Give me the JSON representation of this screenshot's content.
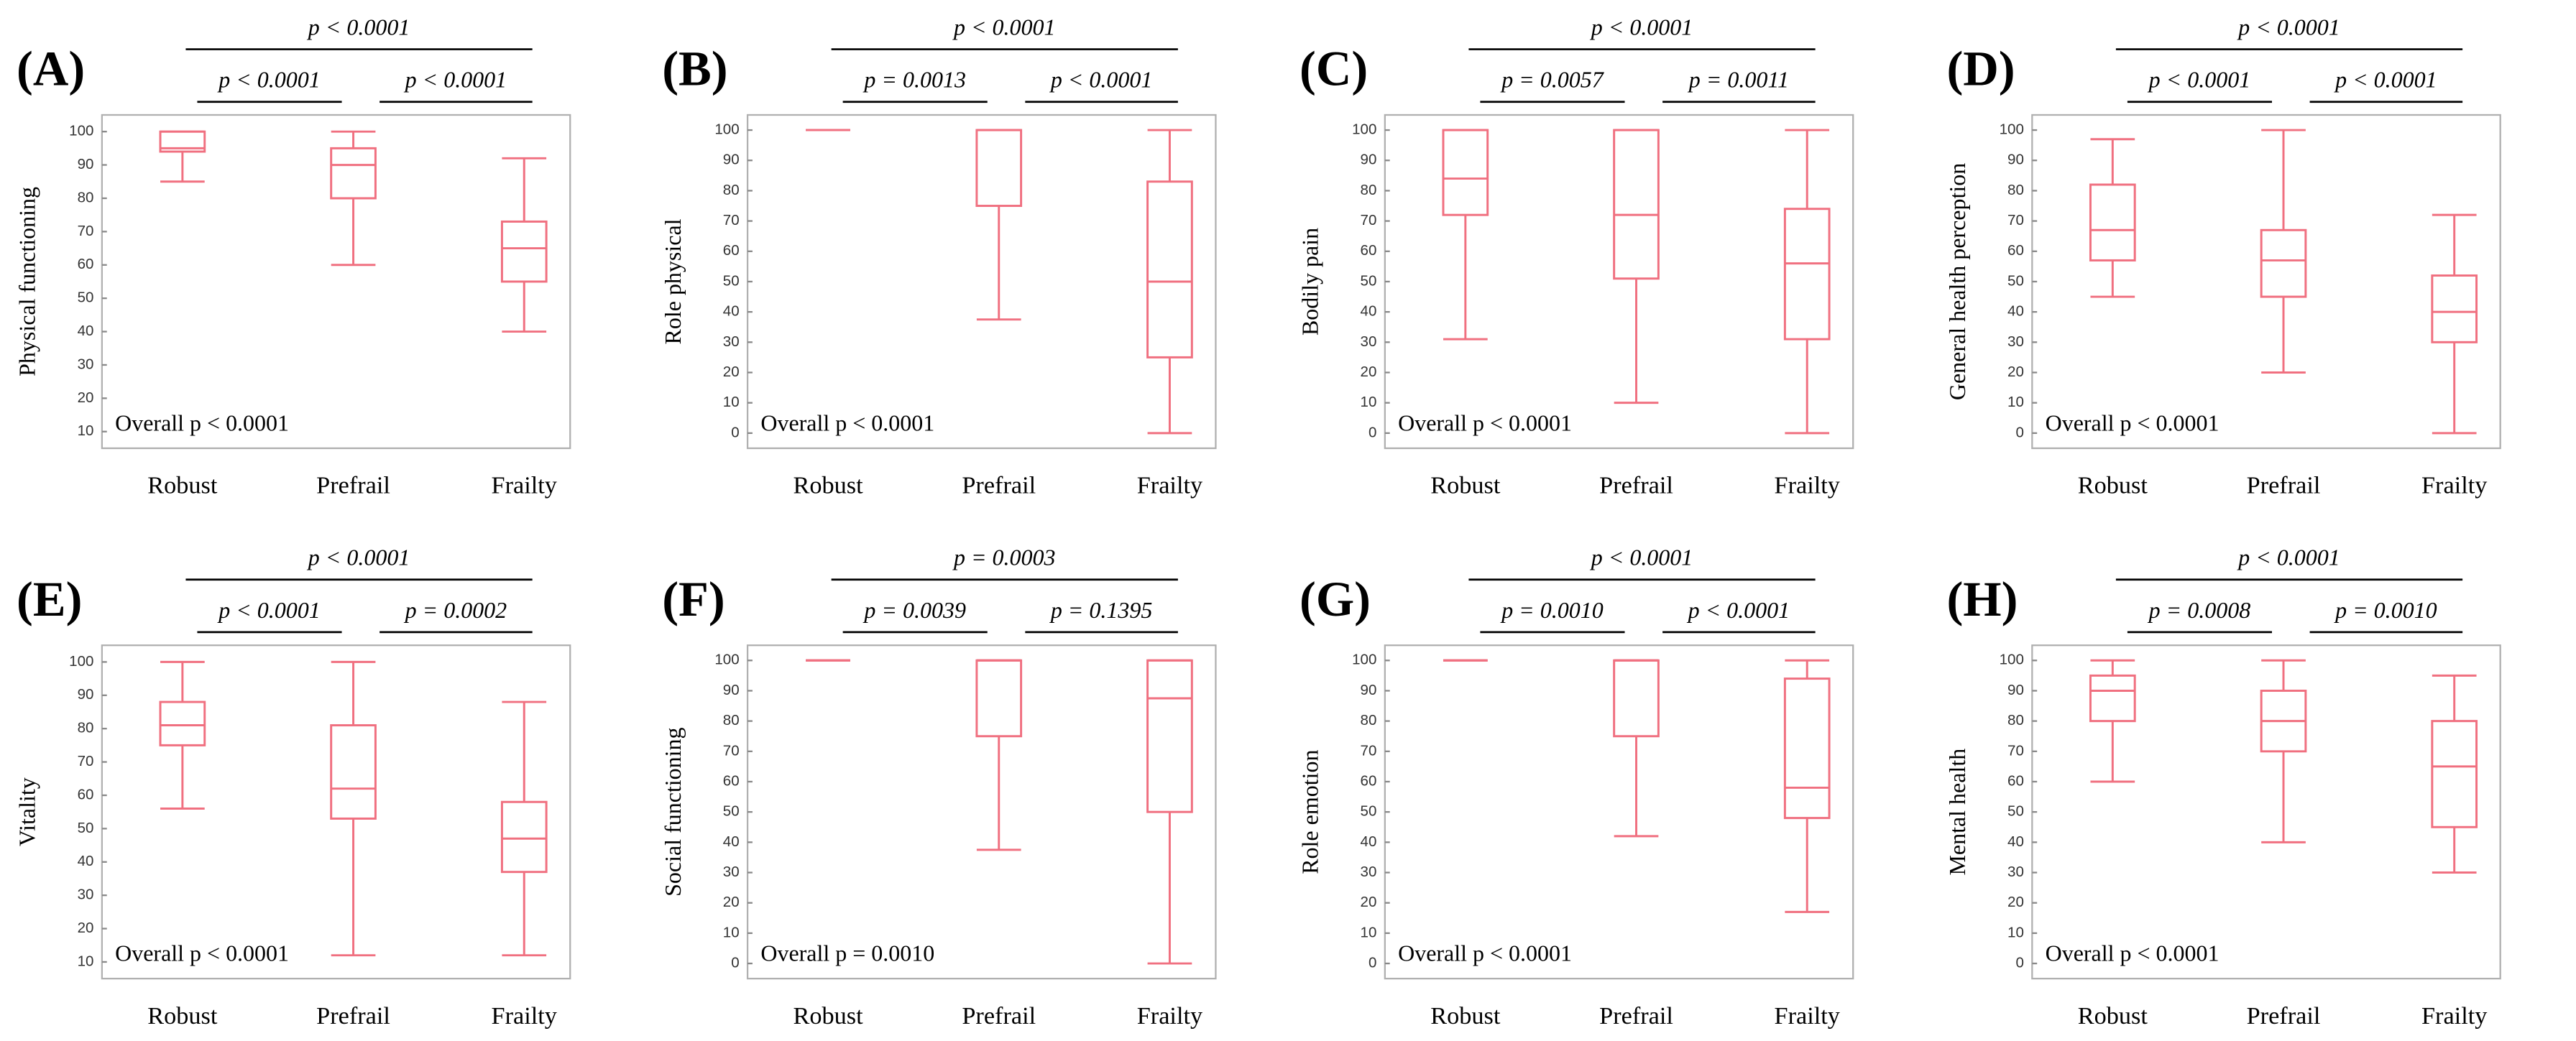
{
  "chart_data": [
    {
      "type": "box",
      "label": "(A)",
      "ylabel": "Physical functioning",
      "categories": [
        "Robust",
        "Prefrail",
        "Frailty"
      ],
      "color": "#f07080",
      "boxes": [
        {
          "min": 85,
          "q1": 94,
          "median": 95,
          "q3": 100,
          "max": 100
        },
        {
          "min": 60,
          "q1": 80,
          "median": 90,
          "q3": 95,
          "max": 100
        },
        {
          "min": 40,
          "q1": 55,
          "median": 65,
          "q3": 73,
          "max": 92
        }
      ],
      "ylim": [
        5,
        105
      ],
      "yticks": [
        10,
        20,
        30,
        40,
        50,
        60,
        70,
        80,
        90,
        100
      ],
      "annotations": {
        "robust_vs_frailty": "p < 0.0001",
        "robust_vs_prefrail": "p < 0.0001",
        "prefrail_vs_frailty": "p < 0.0001",
        "overall": "Overall p < 0.0001"
      }
    },
    {
      "type": "box",
      "label": "(B)",
      "ylabel": "Role physical",
      "categories": [
        "Robust",
        "Prefrail",
        "Frailty"
      ],
      "color": "#f07080",
      "boxes": [
        {
          "min": 100,
          "q1": 100,
          "median": 100,
          "q3": 100,
          "max": 100
        },
        {
          "min": 37.5,
          "q1": 75,
          "median": 100,
          "q3": 100,
          "max": 100
        },
        {
          "min": 0,
          "q1": 25,
          "median": 50,
          "q3": 83,
          "max": 100
        }
      ],
      "ylim": [
        -5,
        105
      ],
      "yticks": [
        0,
        10,
        20,
        30,
        40,
        50,
        60,
        70,
        80,
        90,
        100
      ],
      "annotations": {
        "robust_vs_frailty": "p < 0.0001",
        "robust_vs_prefrail": "p = 0.0013",
        "prefrail_vs_frailty": "p < 0.0001",
        "overall": "Overall p < 0.0001"
      }
    },
    {
      "type": "box",
      "label": "(C)",
      "ylabel": "Bodily pain",
      "categories": [
        "Robust",
        "Prefrail",
        "Frailty"
      ],
      "color": "#f07080",
      "boxes": [
        {
          "min": 31,
          "q1": 72,
          "median": 84,
          "q3": 100,
          "max": 100
        },
        {
          "min": 10,
          "q1": 51,
          "median": 72,
          "q3": 100,
          "max": 100
        },
        {
          "min": 0,
          "q1": 31,
          "median": 56,
          "q3": 74,
          "max": 100
        }
      ],
      "ylim": [
        -5,
        105
      ],
      "yticks": [
        0,
        10,
        20,
        30,
        40,
        50,
        60,
        70,
        80,
        90,
        100
      ],
      "annotations": {
        "robust_vs_frailty": "p < 0.0001",
        "robust_vs_prefrail": "p = 0.0057",
        "prefrail_vs_frailty": "p = 0.0011",
        "overall": "Overall p < 0.0001"
      }
    },
    {
      "type": "box",
      "label": "(D)",
      "ylabel": "General health perception",
      "categories": [
        "Robust",
        "Prefrail",
        "Frailty"
      ],
      "color": "#f07080",
      "boxes": [
        {
          "min": 45,
          "q1": 57,
          "median": 67,
          "q3": 82,
          "max": 97
        },
        {
          "min": 20,
          "q1": 45,
          "median": 57,
          "q3": 67,
          "max": 100
        },
        {
          "min": 0,
          "q1": 30,
          "median": 40,
          "q3": 52,
          "max": 72
        }
      ],
      "ylim": [
        -5,
        105
      ],
      "yticks": [
        0,
        10,
        20,
        30,
        40,
        50,
        60,
        70,
        80,
        90,
        100
      ],
      "annotations": {
        "robust_vs_frailty": "p < 0.0001",
        "robust_vs_prefrail": "p < 0.0001",
        "prefrail_vs_frailty": "p < 0.0001",
        "overall": "Overall p < 0.0001"
      }
    },
    {
      "type": "box",
      "label": "(E)",
      "ylabel": "Vitality",
      "categories": [
        "Robust",
        "Prefrail",
        "Frailty"
      ],
      "color": "#f07080",
      "boxes": [
        {
          "min": 56,
          "q1": 75,
          "median": 81,
          "q3": 88,
          "max": 100
        },
        {
          "min": 12,
          "q1": 53,
          "median": 62,
          "q3": 81,
          "max": 100
        },
        {
          "min": 12,
          "q1": 37,
          "median": 47,
          "q3": 58,
          "max": 88
        }
      ],
      "ylim": [
        5,
        105
      ],
      "yticks": [
        10,
        20,
        30,
        40,
        50,
        60,
        70,
        80,
        90,
        100
      ],
      "annotations": {
        "robust_vs_frailty": "p < 0.0001",
        "robust_vs_prefrail": "p < 0.0001",
        "prefrail_vs_frailty": "p = 0.0002",
        "overall": "Overall p < 0.0001"
      }
    },
    {
      "type": "box",
      "label": "(F)",
      "ylabel": "Social functioning",
      "categories": [
        "Robust",
        "Prefrail",
        "Frailty"
      ],
      "color": "#f07080",
      "boxes": [
        {
          "min": 100,
          "q1": 100,
          "median": 100,
          "q3": 100,
          "max": 100
        },
        {
          "min": 37.5,
          "q1": 75,
          "median": 100,
          "q3": 100,
          "max": 100
        },
        {
          "min": 0,
          "q1": 50,
          "median": 87.5,
          "q3": 100,
          "max": 100
        }
      ],
      "ylim": [
        -5,
        105
      ],
      "yticks": [
        0,
        10,
        20,
        30,
        40,
        50,
        60,
        70,
        80,
        90,
        100
      ],
      "annotations": {
        "robust_vs_frailty": "p = 0.0003",
        "robust_vs_prefrail": "p = 0.0039",
        "prefrail_vs_frailty": "p = 0.1395",
        "overall": "Overall p = 0.0010"
      }
    },
    {
      "type": "box",
      "label": "(G)",
      "ylabel": "Role emotion",
      "categories": [
        "Robust",
        "Prefrail",
        "Frailty"
      ],
      "color": "#f07080",
      "boxes": [
        {
          "min": 100,
          "q1": 100,
          "median": 100,
          "q3": 100,
          "max": 100
        },
        {
          "min": 42,
          "q1": 75,
          "median": 100,
          "q3": 100,
          "max": 100
        },
        {
          "min": 17,
          "q1": 48,
          "median": 58,
          "q3": 94,
          "max": 100
        }
      ],
      "ylim": [
        -5,
        105
      ],
      "yticks": [
        0,
        10,
        20,
        30,
        40,
        50,
        60,
        70,
        80,
        90,
        100
      ],
      "annotations": {
        "robust_vs_frailty": "p < 0.0001",
        "robust_vs_prefrail": "p = 0.0010",
        "prefrail_vs_frailty": "p < 0.0001",
        "overall": "Overall p < 0.0001"
      }
    },
    {
      "type": "box",
      "label": "(H)",
      "ylabel": "Mental health",
      "categories": [
        "Robust",
        "Prefrail",
        "Frailty"
      ],
      "color": "#f07080",
      "boxes": [
        {
          "min": 60,
          "q1": 80,
          "median": 90,
          "q3": 95,
          "max": 100
        },
        {
          "min": 40,
          "q1": 70,
          "median": 80,
          "q3": 90,
          "max": 100
        },
        {
          "min": 30,
          "q1": 45,
          "median": 65,
          "q3": 80,
          "max": 95
        }
      ],
      "ylim": [
        -5,
        105
      ],
      "yticks": [
        0,
        10,
        20,
        30,
        40,
        50,
        60,
        70,
        80,
        90,
        100
      ],
      "annotations": {
        "robust_vs_frailty": "p < 0.0001",
        "robust_vs_prefrail": "p = 0.0008",
        "prefrail_vs_frailty": "p = 0.0010",
        "overall": "Overall p < 0.0001"
      }
    }
  ]
}
